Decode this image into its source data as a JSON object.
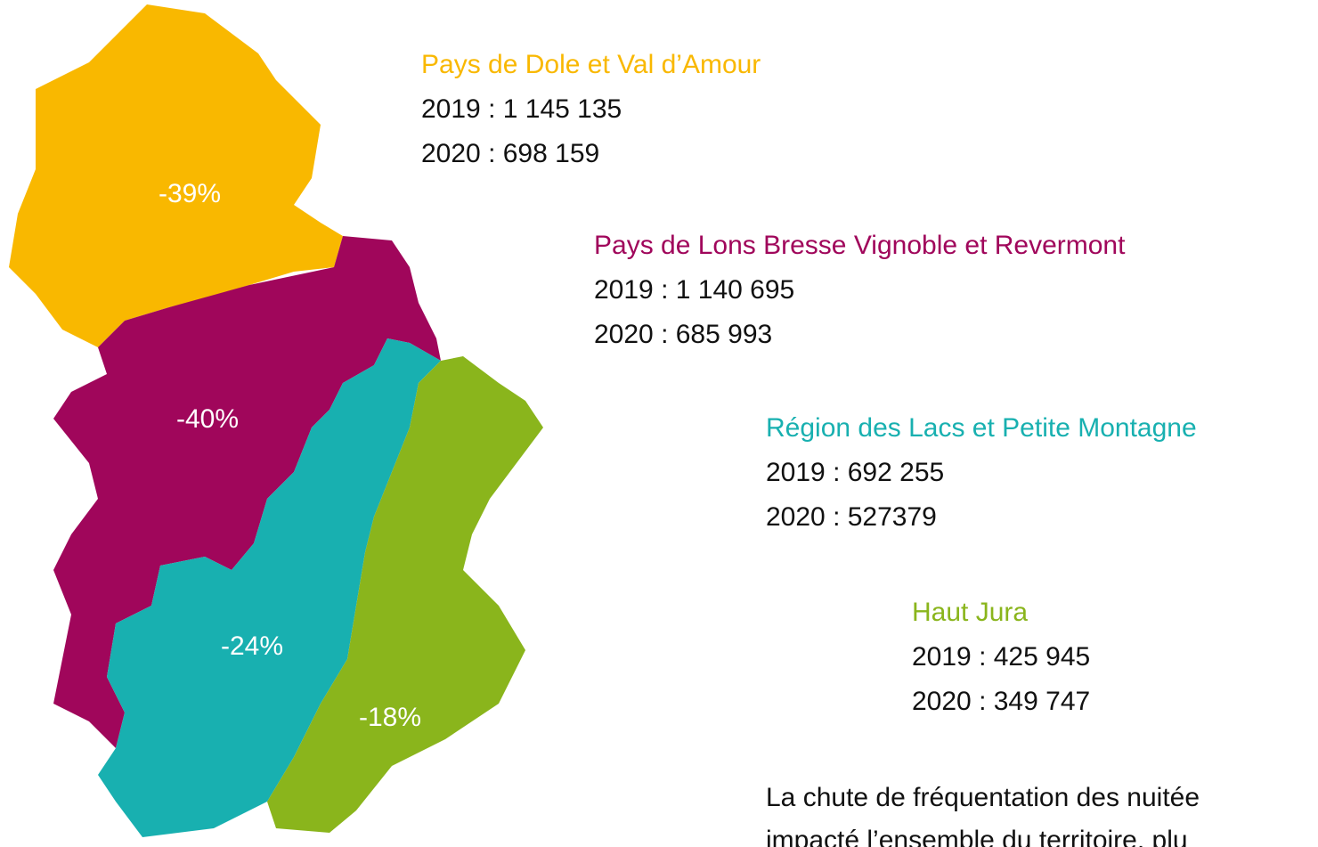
{
  "regions": [
    {
      "name": "Pays de Dole et Val d’Amour",
      "line_2019": "2019 : 1 145 135",
      "line_2020": "2020 : 698 159",
      "change": "-39%",
      "color": "#f9b800"
    },
    {
      "name": "Pays de Lons Bresse Vignoble et Revermont",
      "line_2019": "2019 : 1 140 695",
      "line_2020": "2020 : 685 993",
      "change": "-40%",
      "color": "#a0065b"
    },
    {
      "name": "Région des Lacs et Petite Montagne",
      "line_2019": "2019 : 692 255",
      "line_2020": "2020 : 527379",
      "change": "-24%",
      "color": "#18b0b0"
    },
    {
      "name": "Haut Jura",
      "line_2019": "2019 : 425 945",
      "line_2020": "2020 : 349 747",
      "change": "-18%",
      "color": "#8ab51c"
    }
  ],
  "footer": {
    "lines": [
      "La chute de fréquentation des nuitée",
      "impacté l’ensemble du territoire, plu"
    ]
  }
}
